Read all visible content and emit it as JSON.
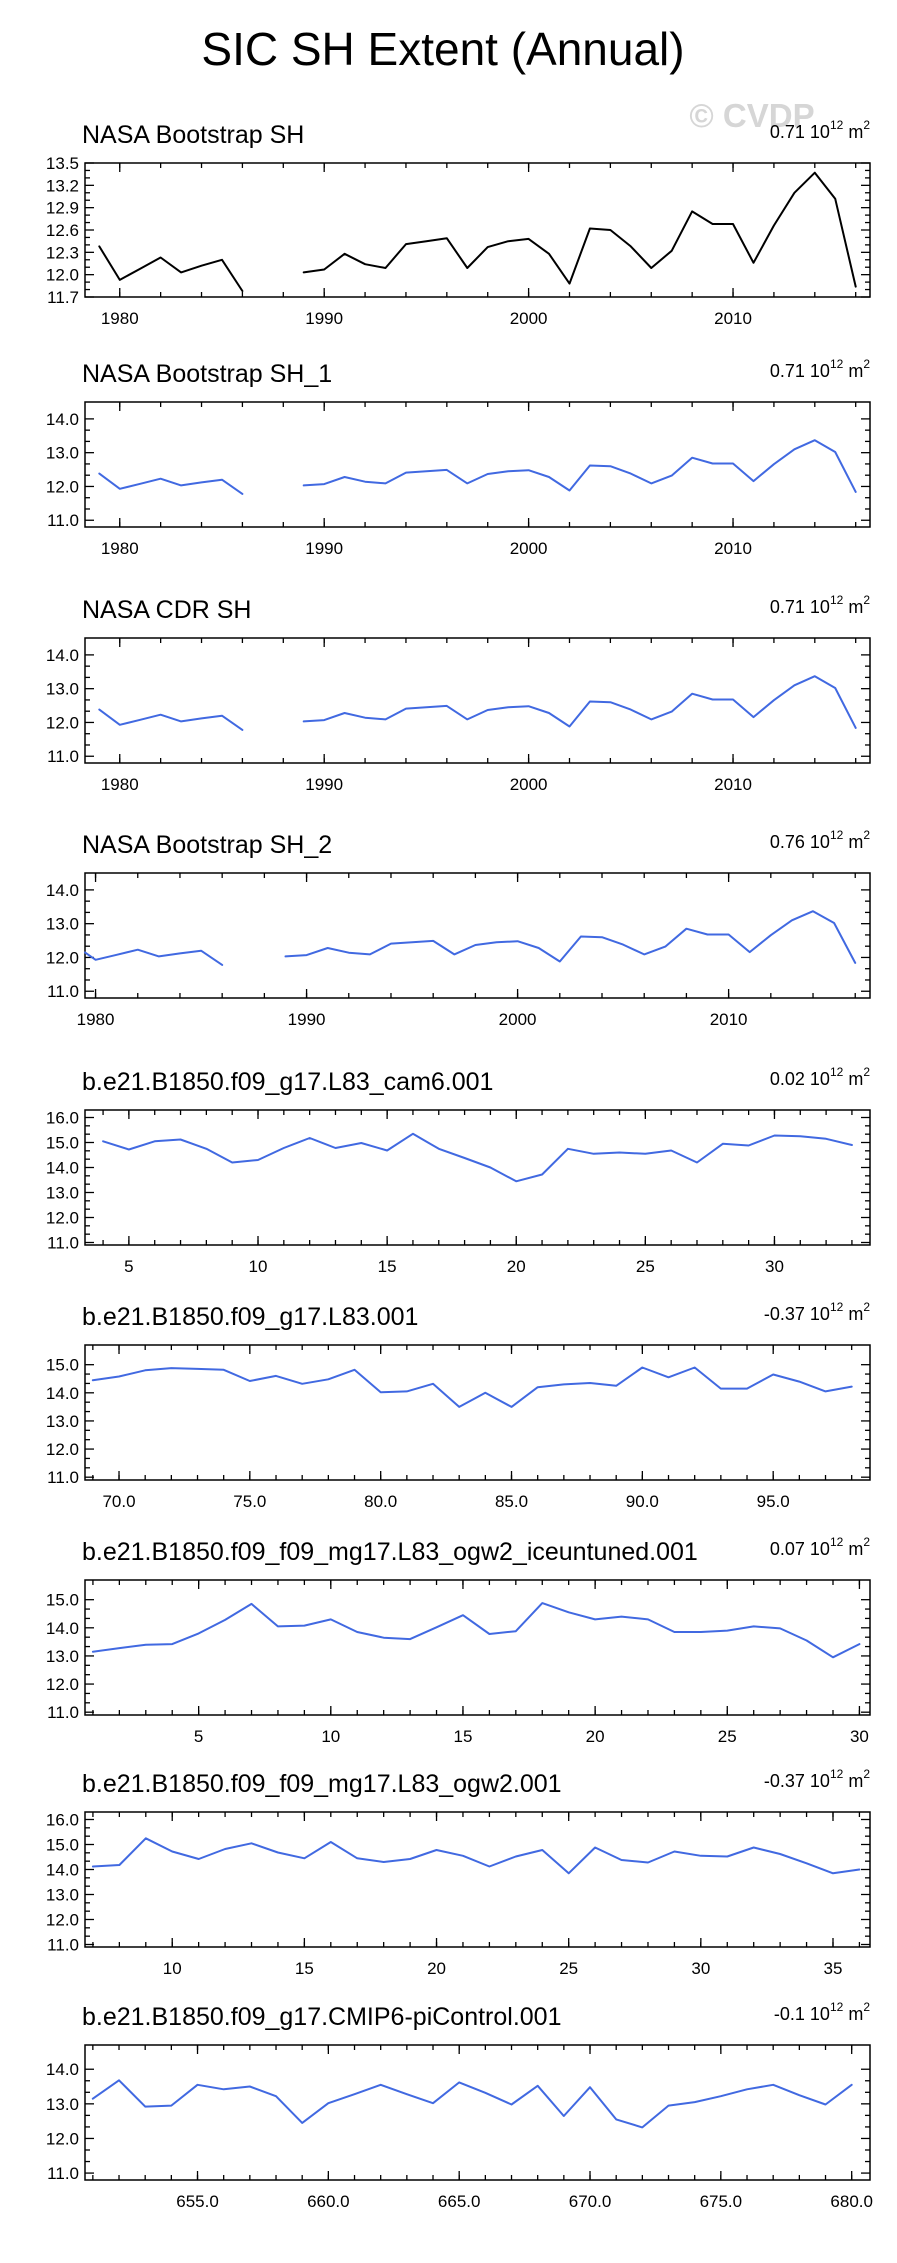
{
  "figure": {
    "title": "SIC SH Extent (Annual)",
    "watermark": "© CVDP"
  },
  "colors": {
    "observation_line": "#000000",
    "model_line": "#4169e1"
  },
  "chart_data": [
    {
      "type": "line",
      "title": "NASA Bootstrap SH",
      "right_title": {
        "value": "0.71",
        "unit_base": "10",
        "unit_exp": "12",
        "unit_suffix": "m"
      },
      "line_color": "black",
      "xlim": [
        1978.3,
        2016.7
      ],
      "ylim": [
        11.7,
        13.5
      ],
      "xticks": [
        1980,
        1990,
        2000,
        2010
      ],
      "xtick_labels": [
        "1980",
        "1990",
        "2000",
        "2010"
      ],
      "yticks": [
        11.7,
        12.0,
        12.3,
        12.6,
        12.9,
        13.2,
        13.5
      ],
      "ytick_labels": [
        "11.7",
        "12.0",
        "12.3",
        "12.6",
        "12.9",
        "13.2",
        "13.5"
      ],
      "series": [
        {
          "name": "NASA Bootstrap SH",
          "x": [
            1979,
            1980,
            1981,
            1982,
            1983,
            1984,
            1985,
            1986,
            1987,
            1988,
            1989,
            1990,
            1991,
            1992,
            1993,
            1994,
            1995,
            1996,
            1997,
            1998,
            1999,
            2000,
            2001,
            2002,
            2003,
            2004,
            2005,
            2006,
            2007,
            2008,
            2009,
            2010,
            2011,
            2012,
            2013,
            2014,
            2015,
            2016
          ],
          "values": [
            12.38,
            11.93,
            12.08,
            12.23,
            12.03,
            12.12,
            12.2,
            11.78,
            null,
            null,
            12.03,
            12.07,
            12.28,
            12.14,
            12.09,
            12.41,
            12.45,
            12.49,
            12.09,
            12.37,
            12.45,
            12.48,
            12.28,
            11.88,
            12.62,
            12.6,
            12.38,
            12.09,
            12.32,
            12.85,
            12.68,
            12.68,
            12.16,
            12.66,
            13.1,
            13.37,
            13.02,
            11.84
          ]
        }
      ]
    },
    {
      "type": "line",
      "title": "NASA Bootstrap SH_1",
      "right_title": {
        "value": "0.71",
        "unit_base": "10",
        "unit_exp": "12",
        "unit_suffix": "m"
      },
      "line_color": "blue",
      "xlim": [
        1978.3,
        2016.7
      ],
      "ylim": [
        10.8,
        14.5
      ],
      "xticks": [
        1980,
        1990,
        2000,
        2010
      ],
      "xtick_labels": [
        "1980",
        "1990",
        "2000",
        "2010"
      ],
      "yticks": [
        11.0,
        12.0,
        13.0,
        14.0
      ],
      "ytick_labels": [
        "11.0",
        "12.0",
        "13.0",
        "14.0"
      ],
      "series": [
        {
          "name": "NASA Bootstrap SH_1",
          "x": [
            1979,
            1980,
            1981,
            1982,
            1983,
            1984,
            1985,
            1986,
            1987,
            1988,
            1989,
            1990,
            1991,
            1992,
            1993,
            1994,
            1995,
            1996,
            1997,
            1998,
            1999,
            2000,
            2001,
            2002,
            2003,
            2004,
            2005,
            2006,
            2007,
            2008,
            2009,
            2010,
            2011,
            2012,
            2013,
            2014,
            2015,
            2016
          ],
          "values": [
            12.38,
            11.93,
            12.08,
            12.23,
            12.03,
            12.12,
            12.2,
            11.78,
            null,
            null,
            12.03,
            12.07,
            12.28,
            12.14,
            12.09,
            12.41,
            12.45,
            12.49,
            12.09,
            12.37,
            12.45,
            12.48,
            12.28,
            11.88,
            12.62,
            12.6,
            12.38,
            12.09,
            12.32,
            12.85,
            12.68,
            12.68,
            12.16,
            12.66,
            13.1,
            13.37,
            13.02,
            11.84
          ]
        }
      ]
    },
    {
      "type": "line",
      "title": "NASA CDR SH",
      "right_title": {
        "value": "0.71",
        "unit_base": "10",
        "unit_exp": "12",
        "unit_suffix": "m"
      },
      "line_color": "blue",
      "xlim": [
        1978.3,
        2016.7
      ],
      "ylim": [
        10.8,
        14.5
      ],
      "xticks": [
        1980,
        1990,
        2000,
        2010
      ],
      "xtick_labels": [
        "1980",
        "1990",
        "2000",
        "2010"
      ],
      "yticks": [
        11.0,
        12.0,
        13.0,
        14.0
      ],
      "ytick_labels": [
        "11.0",
        "12.0",
        "13.0",
        "14.0"
      ],
      "series": [
        {
          "name": "NASA CDR SH",
          "x": [
            1979,
            1980,
            1981,
            1982,
            1983,
            1984,
            1985,
            1986,
            1987,
            1988,
            1989,
            1990,
            1991,
            1992,
            1993,
            1994,
            1995,
            1996,
            1997,
            1998,
            1999,
            2000,
            2001,
            2002,
            2003,
            2004,
            2005,
            2006,
            2007,
            2008,
            2009,
            2010,
            2011,
            2012,
            2013,
            2014,
            2015,
            2016
          ],
          "values": [
            12.38,
            11.93,
            12.08,
            12.23,
            12.03,
            12.12,
            12.2,
            11.78,
            null,
            null,
            12.03,
            12.07,
            12.28,
            12.14,
            12.09,
            12.41,
            12.45,
            12.49,
            12.09,
            12.37,
            12.45,
            12.48,
            12.28,
            11.88,
            12.62,
            12.6,
            12.38,
            12.09,
            12.32,
            12.85,
            12.68,
            12.68,
            12.16,
            12.66,
            13.1,
            13.37,
            13.02,
            11.84
          ]
        }
      ]
    },
    {
      "type": "line",
      "title": "NASA Bootstrap SH_2",
      "right_title": {
        "value": "0.76",
        "unit_base": "10",
        "unit_exp": "12",
        "unit_suffix": "m"
      },
      "line_color": "blue",
      "xlim": [
        1979.5,
        2016.7
      ],
      "ylim": [
        10.8,
        14.5
      ],
      "xticks": [
        1980,
        1990,
        2000,
        2010
      ],
      "xtick_labels": [
        "1980",
        "1990",
        "2000",
        "2010"
      ],
      "yticks": [
        11.0,
        12.0,
        13.0,
        14.0
      ],
      "ytick_labels": [
        "11.0",
        "12.0",
        "13.0",
        "14.0"
      ],
      "series": [
        {
          "name": "NASA Bootstrap SH_2",
          "x": [
            1979.5,
            1980,
            1981,
            1982,
            1983,
            1984,
            1985,
            1986,
            1987,
            1988,
            1989,
            1990,
            1991,
            1992,
            1993,
            1994,
            1995,
            1996,
            1997,
            1998,
            1999,
            2000,
            2001,
            2002,
            2003,
            2004,
            2005,
            2006,
            2007,
            2008,
            2009,
            2010,
            2011,
            2012,
            2013,
            2014,
            2015,
            2016
          ],
          "values": [
            12.15,
            11.93,
            12.08,
            12.23,
            12.03,
            12.12,
            12.2,
            11.78,
            null,
            null,
            12.03,
            12.07,
            12.28,
            12.14,
            12.09,
            12.41,
            12.45,
            12.49,
            12.09,
            12.37,
            12.45,
            12.48,
            12.28,
            11.88,
            12.62,
            12.6,
            12.38,
            12.09,
            12.32,
            12.85,
            12.68,
            12.68,
            12.16,
            12.66,
            13.1,
            13.37,
            13.02,
            11.84
          ]
        }
      ]
    },
    {
      "type": "line",
      "title": "b.e21.B1850.f09_g17.L83_cam6.001",
      "right_title": {
        "value": "0.02",
        "unit_base": "10",
        "unit_exp": "12",
        "unit_suffix": "m"
      },
      "line_color": "blue",
      "xlim": [
        3.3,
        33.7
      ],
      "ylim": [
        10.9,
        16.3
      ],
      "xticks": [
        5,
        10,
        15,
        20,
        25,
        30
      ],
      "xtick_labels": [
        "5",
        "10",
        "15",
        "20",
        "25",
        "30"
      ],
      "yticks": [
        11.0,
        12.0,
        13.0,
        14.0,
        15.0,
        16.0
      ],
      "ytick_labels": [
        "11.0",
        "12.0",
        "13.0",
        "14.0",
        "15.0",
        "16.0"
      ],
      "series": [
        {
          "name": "b.e21.B1850.f09_g17.L83_cam6.001",
          "x": [
            4,
            5,
            6,
            7,
            8,
            9,
            10,
            11,
            12,
            13,
            14,
            15,
            16,
            17,
            18,
            19,
            20,
            21,
            22,
            23,
            24,
            25,
            26,
            27,
            28,
            29,
            30,
            31,
            32,
            33
          ],
          "values": [
            15.05,
            14.72,
            15.05,
            15.12,
            14.75,
            14.2,
            14.3,
            14.78,
            15.18,
            14.78,
            14.98,
            14.68,
            15.35,
            14.75,
            14.38,
            14.0,
            13.45,
            13.72,
            14.75,
            14.55,
            14.6,
            14.55,
            14.68,
            14.2,
            14.95,
            14.88,
            15.28,
            15.25,
            15.15,
            14.9
          ]
        }
      ]
    },
    {
      "type": "line",
      "title": "b.e21.B1850.f09_g17.L83.001",
      "right_title": {
        "value": "-0.37",
        "unit_base": "10",
        "unit_exp": "12",
        "unit_suffix": "m"
      },
      "line_color": "blue",
      "xlim": [
        68.7,
        98.7
      ],
      "ylim": [
        10.9,
        15.7
      ],
      "xticks": [
        70,
        75,
        80,
        85,
        90,
        95
      ],
      "xtick_labels": [
        "70.0",
        "75.0",
        "80.0",
        "85.0",
        "90.0",
        "95.0"
      ],
      "yticks": [
        11.0,
        12.0,
        13.0,
        14.0,
        15.0
      ],
      "ytick_labels": [
        "11.0",
        "12.0",
        "13.0",
        "14.0",
        "15.0"
      ],
      "series": [
        {
          "name": "b.e21.B1850.f09_g17.L83.001",
          "x": [
            69,
            70,
            71,
            72,
            73,
            74,
            75,
            76,
            77,
            78,
            79,
            80,
            81,
            82,
            83,
            84,
            85,
            86,
            87,
            88,
            89,
            90,
            91,
            92,
            93,
            94,
            95,
            96,
            97,
            98
          ],
          "values": [
            14.45,
            14.58,
            14.8,
            14.88,
            14.85,
            14.82,
            14.42,
            14.6,
            14.32,
            14.48,
            14.82,
            14.02,
            14.05,
            14.32,
            13.5,
            14.0,
            13.5,
            14.2,
            14.3,
            14.35,
            14.25,
            14.9,
            14.55,
            14.9,
            14.15,
            14.15,
            14.65,
            14.4,
            14.05,
            14.22
          ]
        }
      ]
    },
    {
      "type": "line",
      "title": "b.e21.B1850.f09_f09_mg17.L83_ogw2_iceuntuned.001",
      "right_title": {
        "value": "0.07",
        "unit_base": "10",
        "unit_exp": "12",
        "unit_suffix": "m"
      },
      "line_color": "blue",
      "xlim": [
        0.7,
        30.4
      ],
      "ylim": [
        10.9,
        15.7
      ],
      "xticks": [
        5,
        10,
        15,
        20,
        25,
        30
      ],
      "xtick_labels": [
        "5",
        "10",
        "15",
        "20",
        "25",
        "30"
      ],
      "yticks": [
        11.0,
        12.0,
        13.0,
        14.0,
        15.0
      ],
      "ytick_labels": [
        "11.0",
        "12.0",
        "13.0",
        "14.0",
        "15.0"
      ],
      "series": [
        {
          "name": "b.e21.B1850.f09_f09_mg17.L83_ogw2_iceuntuned.001",
          "x": [
            1,
            2,
            3,
            4,
            5,
            6,
            7,
            8,
            9,
            10,
            11,
            12,
            13,
            14,
            15,
            16,
            17,
            18,
            19,
            20,
            21,
            22,
            23,
            24,
            25,
            26,
            27,
            28,
            29,
            30
          ],
          "values": [
            13.15,
            13.28,
            13.4,
            13.42,
            13.8,
            14.28,
            14.85,
            14.05,
            14.08,
            14.3,
            13.85,
            13.65,
            13.6,
            14.02,
            14.45,
            13.78,
            13.88,
            14.88,
            14.55,
            14.3,
            14.4,
            14.3,
            13.85,
            13.85,
            13.9,
            14.05,
            13.98,
            13.55,
            12.95,
            13.42
          ]
        }
      ]
    },
    {
      "type": "line",
      "title": "b.e21.B1850.f09_f09_mg17.L83_ogw2.001",
      "right_title": {
        "value": "-0.37",
        "unit_base": "10",
        "unit_exp": "12",
        "unit_suffix": "m"
      },
      "line_color": "blue",
      "xlim": [
        6.7,
        36.4
      ],
      "ylim": [
        10.9,
        16.3
      ],
      "xticks": [
        10,
        15,
        20,
        25,
        30,
        35
      ],
      "xtick_labels": [
        "10",
        "15",
        "20",
        "25",
        "30",
        "35"
      ],
      "yticks": [
        11.0,
        12.0,
        13.0,
        14.0,
        15.0,
        16.0
      ],
      "ytick_labels": [
        "11.0",
        "12.0",
        "13.0",
        "14.0",
        "15.0",
        "16.0"
      ],
      "series": [
        {
          "name": "b.e21.B1850.f09_f09_mg17.L83_ogw2.001",
          "x": [
            7,
            8,
            9,
            10,
            11,
            12,
            13,
            14,
            15,
            16,
            17,
            18,
            19,
            20,
            21,
            22,
            23,
            24,
            25,
            26,
            27,
            28,
            29,
            30,
            31,
            32,
            33,
            34,
            35,
            36
          ],
          "values": [
            14.12,
            14.18,
            15.25,
            14.72,
            14.42,
            14.82,
            15.05,
            14.68,
            14.45,
            15.1,
            14.45,
            14.3,
            14.42,
            14.78,
            14.55,
            14.12,
            14.52,
            14.78,
            13.85,
            14.88,
            14.38,
            14.28,
            14.72,
            14.55,
            14.52,
            14.88,
            14.62,
            14.25,
            13.85,
            14.0
          ]
        }
      ]
    },
    {
      "type": "line",
      "title": "b.e21.B1850.f09_g17.CMIP6-piControl.001",
      "right_title": {
        "value": "-0.1",
        "unit_base": "10",
        "unit_exp": "12",
        "unit_suffix": "m"
      },
      "line_color": "blue",
      "xlim": [
        650.7,
        680.7
      ],
      "ylim": [
        10.8,
        14.7
      ],
      "xticks": [
        655,
        660,
        665,
        670,
        675,
        680
      ],
      "xtick_labels": [
        "655.0",
        "660.0",
        "665.0",
        "670.0",
        "675.0",
        "680.0"
      ],
      "yticks": [
        11.0,
        12.0,
        13.0,
        14.0
      ],
      "ytick_labels": [
        "11.0",
        "12.0",
        "13.0",
        "14.0"
      ],
      "series": [
        {
          "name": "b.e21.B1850.f09_g17.CMIP6-piControl.001",
          "x": [
            651,
            652,
            653,
            654,
            655,
            656,
            657,
            658,
            659,
            660,
            661,
            662,
            663,
            664,
            665,
            666,
            667,
            668,
            669,
            670,
            671,
            672,
            673,
            674,
            675,
            676,
            677,
            678,
            679,
            680
          ],
          "values": [
            13.15,
            13.68,
            12.92,
            12.95,
            13.55,
            13.42,
            13.5,
            13.22,
            12.45,
            13.02,
            13.28,
            13.55,
            13.28,
            13.02,
            13.62,
            13.32,
            12.98,
            13.52,
            12.65,
            13.48,
            12.55,
            12.32,
            12.95,
            13.05,
            13.22,
            13.42,
            13.55,
            13.25,
            12.98,
            13.55
          ]
        }
      ]
    }
  ]
}
